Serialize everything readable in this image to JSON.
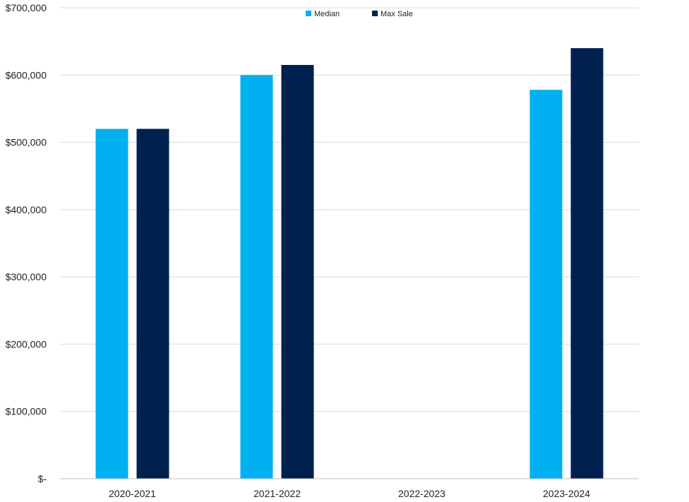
{
  "chart_data": {
    "type": "bar",
    "title": "",
    "xlabel": "",
    "ylabel": "",
    "categories": [
      "2020-2021",
      "2021-2022",
      "2022-2023",
      "2023-2024"
    ],
    "series": [
      {
        "name": "Median",
        "color": "#00b0f0",
        "values": [
          520000,
          600000,
          null,
          578000
        ]
      },
      {
        "name": "Max Sale",
        "color": "#002050",
        "values": [
          520000,
          615000,
          null,
          640000
        ]
      }
    ],
    "ylim": [
      0,
      700000
    ],
    "y_ticks": [
      0,
      100000,
      200000,
      300000,
      400000,
      500000,
      600000,
      700000
    ],
    "y_tick_labels": [
      "$-",
      "$100,000",
      "$200,000",
      "$300,000",
      "$400,000",
      "$500,000",
      "$600,000",
      "$700,000"
    ],
    "grid": true,
    "legend": {
      "position": "top-center",
      "entries": [
        "Median",
        "Max Sale"
      ]
    }
  }
}
